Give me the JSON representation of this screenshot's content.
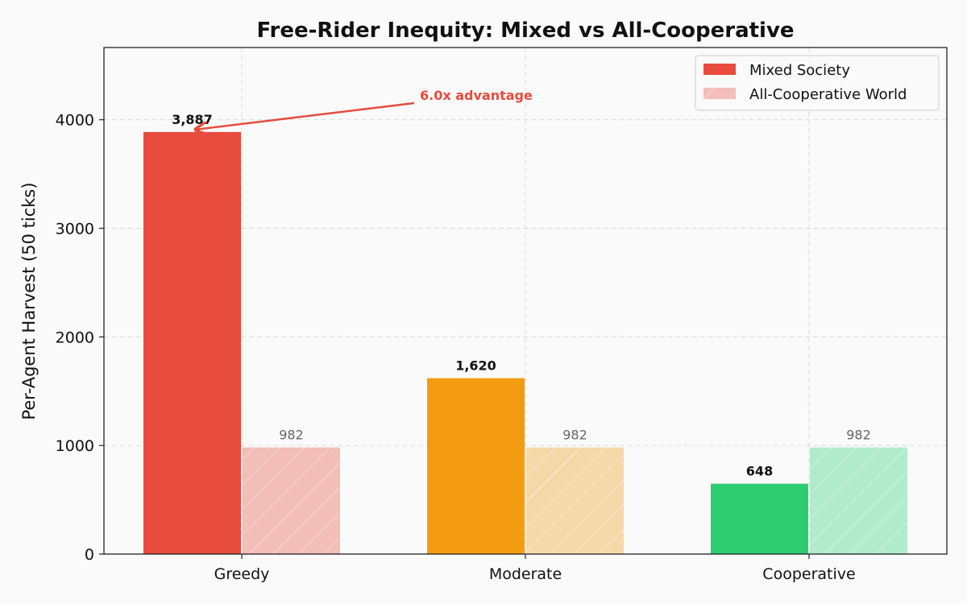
{
  "chart_data": {
    "type": "bar",
    "title": "Free-Rider Inequity: Mixed vs All-Cooperative",
    "xlabel": "",
    "ylabel": "Per-Agent Harvest (50 ticks)",
    "categories": [
      "Greedy",
      "Moderate",
      "Cooperative"
    ],
    "ylim": [
      0,
      4665
    ],
    "yticks": [
      0,
      1000,
      2000,
      3000,
      4000
    ],
    "grid": true,
    "legend_position": "top-right",
    "series": [
      {
        "name": "Mixed Society",
        "values": [
          3887,
          1620,
          648
        ],
        "labels": [
          "3,887",
          "1,620",
          "648"
        ],
        "colors": [
          "#e74c3c",
          "#f39c12",
          "#2ecc71"
        ]
      },
      {
        "name": "All-Cooperative World",
        "values": [
          982,
          982,
          982
        ],
        "labels": [
          "982",
          "982",
          "982"
        ],
        "colors": [
          "#f3bdb8",
          "#f6d9a9",
          "#b1ebcb"
        ],
        "hatch": true
      }
    ],
    "annotation": {
      "text": "6.0x advantage",
      "target_category": "Greedy",
      "target_value": 3887,
      "color": "#e74c3c"
    }
  }
}
